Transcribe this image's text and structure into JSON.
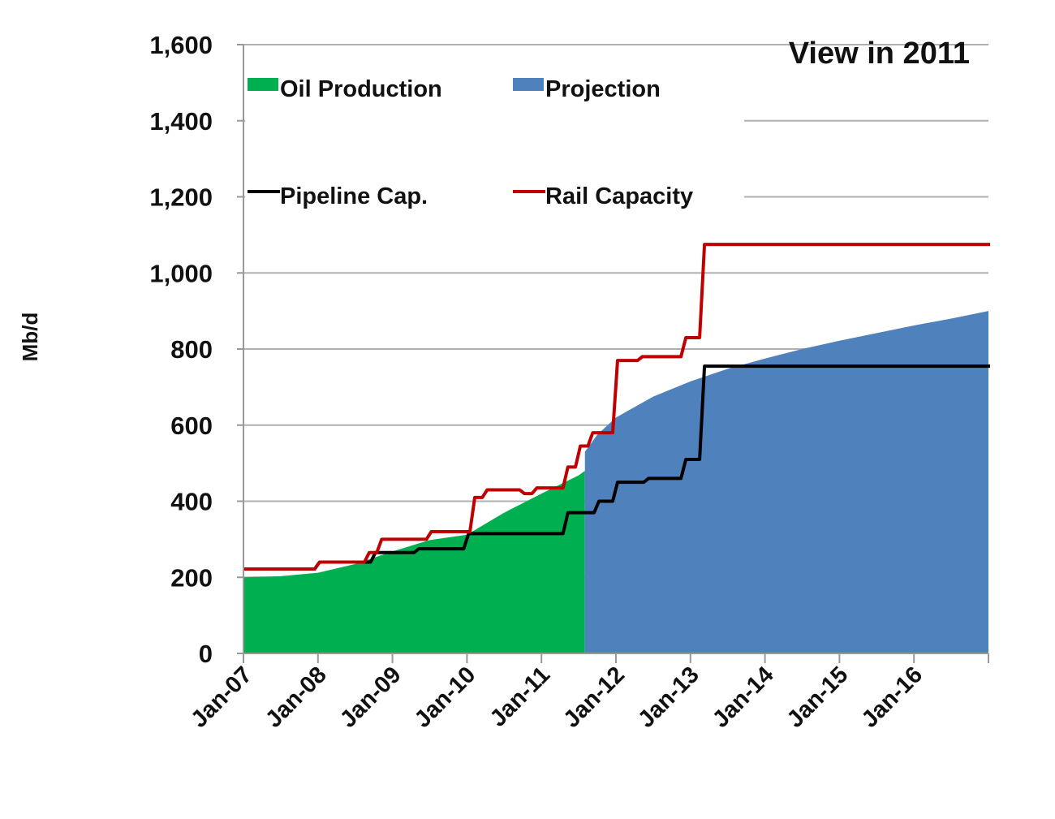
{
  "chart_data": {
    "type": "area",
    "title": "View in 2011",
    "xlabel": "",
    "ylabel": "Mb/d",
    "ylim": [
      0,
      1600
    ],
    "yticks": [
      0,
      200,
      400,
      600,
      800,
      1000,
      1200,
      1400,
      1600
    ],
    "ytick_labels": [
      "0",
      "200",
      "400",
      "600",
      "800",
      "1,000",
      "1,200",
      "1,400",
      "1,600"
    ],
    "xlim": [
      "2007-01",
      "2017-01"
    ],
    "xtick_labels": [
      "Jan-07",
      "Jan-08",
      "Jan-09",
      "Jan-10",
      "Jan-11",
      "Jan-12",
      "Jan-13",
      "Jan-14",
      "Jan-15",
      "Jan-16"
    ],
    "grid": "horizontal",
    "legend_placement": "top-left",
    "series": [
      {
        "name": "Oil Production",
        "kind": "area",
        "color": "#00b050",
        "points": [
          [
            "2007-01",
            200
          ],
          [
            "2007-07",
            203
          ],
          [
            "2008-01",
            212
          ],
          [
            "2008-07",
            235
          ],
          [
            "2009-01",
            268
          ],
          [
            "2009-07",
            298
          ],
          [
            "2010-01",
            312
          ],
          [
            "2010-07",
            370
          ],
          [
            "2011-01",
            420
          ],
          [
            "2011-07",
            468
          ],
          [
            "2011-08",
            480
          ]
        ]
      },
      {
        "name": "Projection",
        "kind": "area",
        "color": "#4f81bd",
        "points": [
          [
            "2011-08",
            530
          ],
          [
            "2011-10",
            575
          ],
          [
            "2012-01",
            620
          ],
          [
            "2012-07",
            675
          ],
          [
            "2013-01",
            715
          ],
          [
            "2013-07",
            748
          ],
          [
            "2014-01",
            775
          ],
          [
            "2014-07",
            800
          ],
          [
            "2015-01",
            822
          ],
          [
            "2015-07",
            842
          ],
          [
            "2016-01",
            862
          ],
          [
            "2016-07",
            880
          ],
          [
            "2017-01",
            900
          ]
        ]
      },
      {
        "name": "Pipeline Cap.",
        "kind": "step-line",
        "color": "#000000",
        "points": [
          [
            "2007-01",
            222
          ],
          [
            "2008-01",
            240
          ],
          [
            "2008-10",
            265
          ],
          [
            "2009-05",
            275
          ],
          [
            "2010-01",
            315
          ],
          [
            "2011-05",
            370
          ],
          [
            "2011-10",
            400
          ],
          [
            "2012-01",
            450
          ],
          [
            "2012-06",
            460
          ],
          [
            "2012-12",
            510
          ],
          [
            "2013-03",
            755
          ],
          [
            "2017-01",
            755
          ]
        ]
      },
      {
        "name": "Rail Capacity",
        "kind": "step-line",
        "color": "#c00000",
        "points": [
          [
            "2007-01",
            222
          ],
          [
            "2008-01",
            240
          ],
          [
            "2008-09",
            265
          ],
          [
            "2008-11",
            300
          ],
          [
            "2009-07",
            320
          ],
          [
            "2010-02",
            410
          ],
          [
            "2010-04",
            430
          ],
          [
            "2010-10",
            420
          ],
          [
            "2010-12",
            435
          ],
          [
            "2011-05",
            490
          ],
          [
            "2011-07",
            545
          ],
          [
            "2011-09",
            580
          ],
          [
            "2012-01",
            770
          ],
          [
            "2012-05",
            780
          ],
          [
            "2012-12",
            830
          ],
          [
            "2013-03",
            1075
          ],
          [
            "2017-01",
            1075
          ]
        ]
      }
    ]
  }
}
